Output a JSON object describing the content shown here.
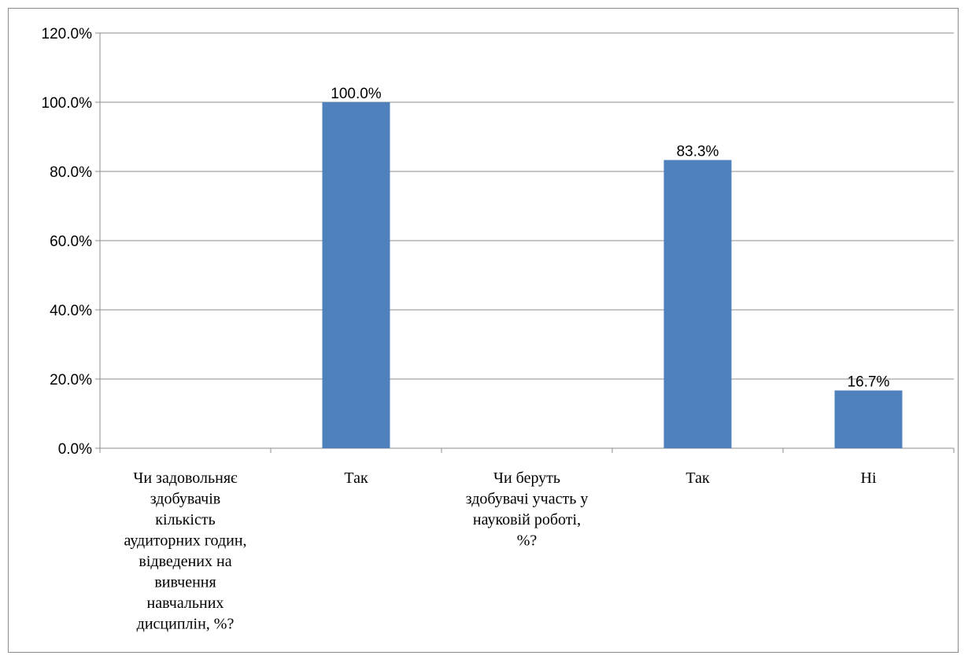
{
  "chart_data": {
    "type": "bar",
    "categories": [
      "Чи задовольняє здобувачів кількість аудиторних годин, відведених на вивчення навчальних дисциплін, %?",
      "Так",
      "Чи беруть здобувачі участь у науковій роботі, %?",
      "Так",
      "Ні"
    ],
    "category_lines": [
      [
        "Чи задовольняє",
        "здобувачів",
        "кількість",
        "аудиторних годин,",
        "відведених на",
        "вивчення",
        "навчальних",
        "дисциплін, %?"
      ],
      [
        "Так"
      ],
      [
        "Чи беруть",
        "здобувачі участь у",
        "науковій роботі,",
        "%?"
      ],
      [
        "Так"
      ],
      [
        "Ні"
      ]
    ],
    "values": [
      null,
      100.0,
      null,
      83.3,
      16.7
    ],
    "data_labels": [
      "",
      "100.0%",
      "",
      "83.3%",
      "16.7%"
    ],
    "y_ticks": [
      "0.0%",
      "20.0%",
      "40.0%",
      "60.0%",
      "80.0%",
      "100.0%",
      "120.0%"
    ],
    "ylim": [
      0,
      120
    ],
    "grid": true,
    "legend": "none",
    "bar_color": "#4f81bd",
    "title": "",
    "xlabel": "",
    "ylabel": ""
  }
}
